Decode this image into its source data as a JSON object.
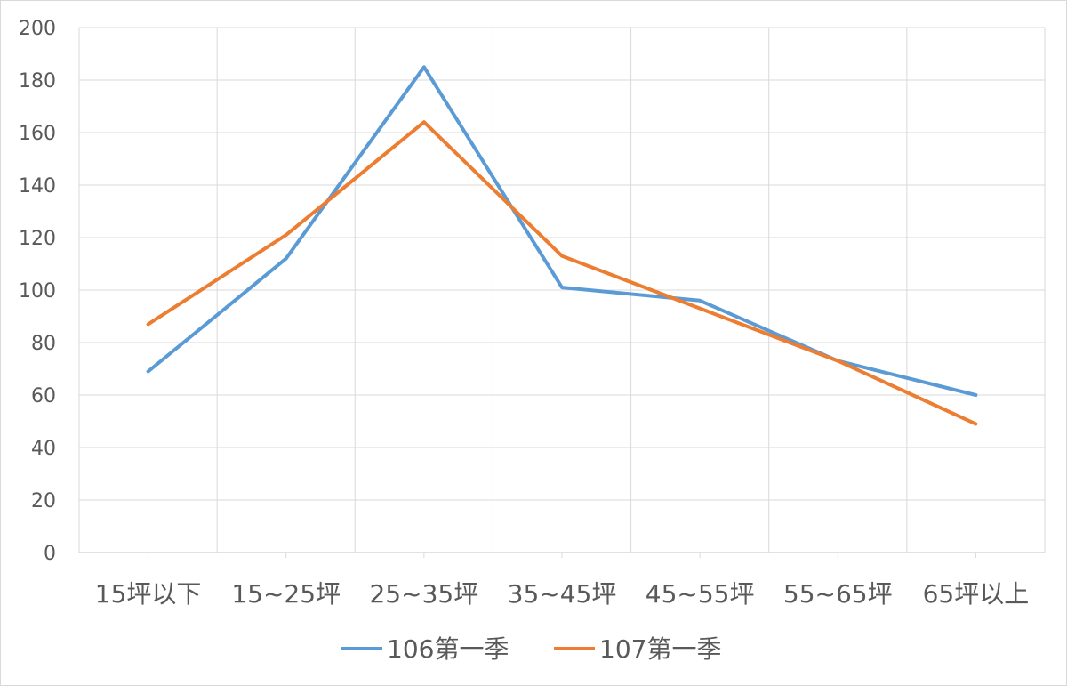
{
  "chart_data": {
    "type": "line",
    "categories": [
      "15坪以下",
      "15~25坪",
      "25~35坪",
      "35~45坪",
      "45~55坪",
      "55~65坪",
      "65坪以上"
    ],
    "series": [
      {
        "name": "106第一季",
        "color": "#5b9bd5",
        "values": [
          69,
          112,
          185,
          101,
          96,
          73,
          60
        ]
      },
      {
        "name": "107第一季",
        "color": "#ed7d31",
        "values": [
          87,
          121,
          164,
          113,
          93,
          73,
          49
        ]
      }
    ],
    "yticks": [
      0,
      20,
      40,
      60,
      80,
      100,
      120,
      140,
      160,
      180,
      200
    ],
    "ylim": [
      0,
      200
    ],
    "grid": true,
    "legend": "bottom"
  }
}
